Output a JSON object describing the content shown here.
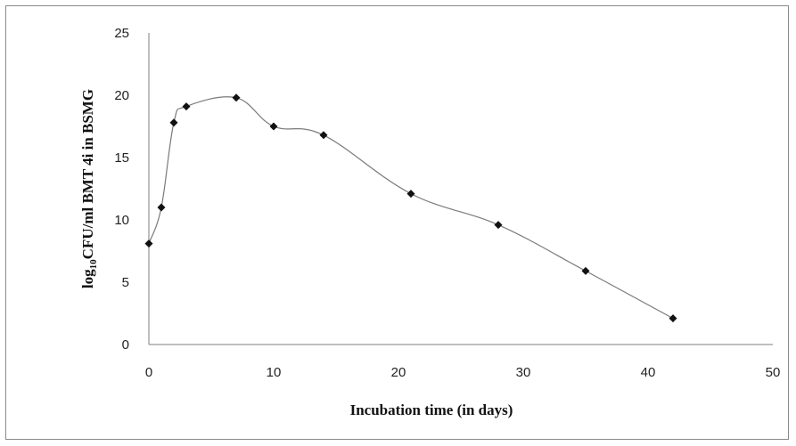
{
  "chart_data": {
    "type": "scatter",
    "title": "",
    "xlabel": "Incubation time (in days)",
    "ylabel_parts": {
      "prefix": "log",
      "subscript": "10",
      "rest": "CFU/ml BMT 4i in BSMG"
    },
    "xlim": [
      0,
      50
    ],
    "ylim": [
      0,
      25
    ],
    "x_ticks": [
      "0",
      "10",
      "20",
      "30",
      "40",
      "50"
    ],
    "y_ticks": [
      "0",
      "5",
      "10",
      "15",
      "20",
      "25"
    ],
    "grid": false,
    "legend": "none",
    "series": [
      {
        "x": [
          0,
          1,
          2,
          3,
          7,
          10,
          14,
          21,
          28,
          35,
          42
        ],
        "y": [
          8.1,
          11.0,
          17.8,
          19.1,
          19.8,
          17.5,
          16.8,
          12.1,
          9.6,
          5.9,
          2.1
        ]
      }
    ],
    "colors": {
      "line": "#7a7a7a",
      "marker": "#111111",
      "axis": "#7f7f7f"
    }
  }
}
